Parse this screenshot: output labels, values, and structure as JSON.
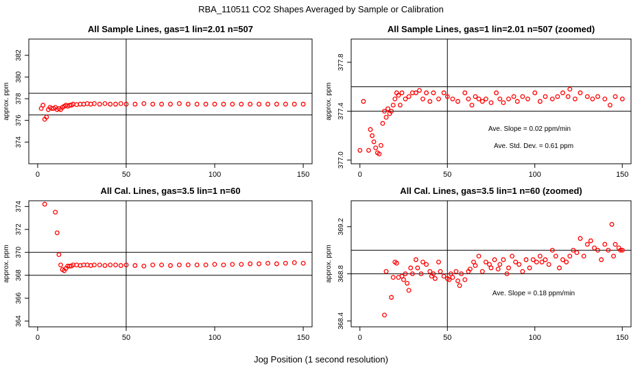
{
  "figure": {
    "title": "RBA_110511  CO2 Shapes Averaged by Sample or Calibration",
    "xlabel": "Jog Position (1 second resolution)"
  },
  "chart_data": [
    {
      "type": "scatter",
      "title": "All Sample Lines, gas=1 lin=2.01 n=507",
      "ylabel": "approx. ppm",
      "xlim": [
        -5,
        155
      ],
      "ylim": [
        372,
        383.5
      ],
      "xticks": [
        0,
        50,
        100,
        150
      ],
      "yticks": [
        374,
        376,
        378,
        380,
        382
      ],
      "hlines": [
        376.5,
        378.5
      ],
      "vline": 50,
      "marker_color": "#ff0000",
      "series": [
        {
          "x": [
            2,
            3,
            4,
            5,
            6,
            7,
            8,
            9,
            10,
            11,
            12,
            13,
            14,
            15,
            16,
            17,
            18,
            19,
            20,
            22,
            24,
            26,
            28,
            30,
            32,
            35,
            38,
            41,
            44,
            47,
            50,
            55,
            60,
            65,
            70,
            75,
            80,
            85,
            90,
            95,
            100,
            105,
            110,
            115,
            120,
            125,
            130,
            135,
            140,
            145,
            150
          ],
          "y": [
            377.1,
            377.4,
            376.1,
            376.3,
            377.0,
            377.2,
            377.1,
            377.1,
            377.2,
            377.0,
            377.1,
            377.0,
            377.2,
            377.3,
            377.4,
            377.3,
            377.4,
            377.4,
            377.5,
            377.45,
            377.5,
            377.5,
            377.55,
            377.5,
            377.55,
            377.5,
            377.55,
            377.5,
            377.5,
            377.55,
            377.5,
            377.5,
            377.55,
            377.5,
            377.5,
            377.5,
            377.55,
            377.5,
            377.5,
            377.5,
            377.5,
            377.5,
            377.5,
            377.5,
            377.5,
            377.5,
            377.5,
            377.5,
            377.5,
            377.5,
            377.5
          ]
        }
      ],
      "annotations": []
    },
    {
      "type": "scatter",
      "title": "All Sample Lines, gas=1 lin=2.01 n=507 (zoomed)",
      "ylabel": "approx. ppm",
      "xlim": [
        -5,
        155
      ],
      "ylim": [
        376.97,
        377.99
      ],
      "xticks": [
        0,
        50,
        100,
        150
      ],
      "yticks": [
        377.0,
        377.4,
        377.8
      ],
      "hlines": [
        377.4,
        377.6
      ],
      "vline": 50,
      "marker_color": "#ff0000",
      "series": [
        {
          "x": [
            0,
            2,
            5,
            6,
            7,
            8,
            9,
            10,
            11,
            12,
            13,
            14,
            15,
            16,
            17,
            18,
            19,
            20,
            21,
            22,
            23,
            24,
            26,
            28,
            30,
            32,
            34,
            36,
            38,
            40,
            42,
            45,
            48,
            50,
            53,
            56,
            60,
            62,
            64,
            66,
            68,
            70,
            72,
            75,
            78,
            80,
            82,
            85,
            88,
            90,
            93,
            96,
            100,
            103,
            106,
            110,
            113,
            116,
            119,
            120,
            123,
            126,
            130,
            133,
            136,
            140,
            143,
            146,
            150
          ],
          "y": [
            377.08,
            377.48,
            377.08,
            377.25,
            377.2,
            377.15,
            377.1,
            377.06,
            377.05,
            377.12,
            377.3,
            377.4,
            377.35,
            377.42,
            377.38,
            377.4,
            377.45,
            377.5,
            377.55,
            377.53,
            377.45,
            377.55,
            377.5,
            377.52,
            377.55,
            377.55,
            377.57,
            377.5,
            377.55,
            377.48,
            377.55,
            377.5,
            377.55,
            377.52,
            377.5,
            377.48,
            377.55,
            377.5,
            377.45,
            377.52,
            377.5,
            377.48,
            377.5,
            377.47,
            377.55,
            377.5,
            377.47,
            377.5,
            377.52,
            377.48,
            377.52,
            377.5,
            377.55,
            377.48,
            377.52,
            377.5,
            377.52,
            377.55,
            377.52,
            377.58,
            377.5,
            377.55,
            377.52,
            377.5,
            377.52,
            377.5,
            377.45,
            377.52,
            377.5
          ]
        }
      ],
      "annotations": [
        "Ave. Slope =  0.02  ppm/min",
        "Ave. Std. Dev. =  0.61  ppm"
      ]
    },
    {
      "type": "scatter",
      "title": "All Cal. Lines, gas=3.5 lin=1 n=60",
      "ylabel": "approx. ppm",
      "xlim": [
        -5,
        155
      ],
      "ylim": [
        363.5,
        374.5
      ],
      "xticks": [
        0,
        50,
        100,
        150
      ],
      "yticks": [
        364,
        366,
        368,
        370,
        372,
        374
      ],
      "hlines": [
        368,
        370
      ],
      "vline": 50,
      "marker_color": "#ff0000",
      "series": [
        {
          "x": [
            4,
            10,
            11,
            12,
            13,
            14,
            15,
            16,
            17,
            18,
            19,
            20,
            22,
            24,
            26,
            28,
            30,
            32,
            35,
            38,
            41,
            44,
            47,
            50,
            55,
            60,
            65,
            70,
            75,
            80,
            85,
            90,
            95,
            100,
            105,
            110,
            115,
            120,
            125,
            130,
            135,
            140,
            145,
            150
          ],
          "y": [
            374.2,
            373.5,
            371.7,
            369.8,
            368.9,
            368.5,
            368.4,
            368.6,
            368.8,
            368.8,
            368.8,
            368.9,
            368.9,
            368.85,
            368.9,
            368.9,
            368.85,
            368.9,
            368.9,
            368.85,
            368.9,
            368.9,
            368.85,
            368.9,
            368.85,
            368.8,
            368.9,
            368.9,
            368.85,
            368.9,
            368.9,
            368.9,
            368.9,
            368.95,
            368.9,
            368.95,
            368.95,
            369.0,
            369.0,
            369.05,
            369.0,
            369.05,
            369.1,
            369.05
          ]
        }
      ],
      "annotations": []
    },
    {
      "type": "scatter",
      "title": "All Cal. Lines, gas=3.5 lin=1 n=60 (zoomed)",
      "ylabel": "approx. ppm",
      "xlim": [
        -5,
        155
      ],
      "ylim": [
        368.35,
        369.42
      ],
      "xticks": [
        0,
        50,
        100,
        150
      ],
      "yticks": [
        368.4,
        368.8,
        369.2
      ],
      "hlines": [
        368.8,
        369.0
      ],
      "vline": 50,
      "marker_color": "#ff0000",
      "series": [
        {
          "x": [
            14,
            15,
            18,
            19,
            20,
            21,
            22,
            24,
            25,
            26,
            27,
            28,
            29,
            30,
            32,
            33,
            35,
            36,
            38,
            40,
            41,
            42,
            43,
            45,
            46,
            48,
            50,
            51,
            52,
            53,
            55,
            56,
            57,
            58,
            60,
            62,
            63,
            65,
            66,
            68,
            70,
            72,
            74,
            75,
            77,
            79,
            80,
            82,
            84,
            85,
            87,
            89,
            91,
            93,
            95,
            97,
            99,
            101,
            103,
            104,
            106,
            108,
            110,
            112,
            114,
            116,
            118,
            120,
            122,
            124,
            126,
            128,
            130,
            132,
            134,
            136,
            138,
            140,
            142,
            144,
            145,
            146,
            148,
            149,
            150
          ],
          "y": [
            368.45,
            368.82,
            368.6,
            368.77,
            368.9,
            368.89,
            368.77,
            368.78,
            368.75,
            368.8,
            368.72,
            368.66,
            368.85,
            368.8,
            368.92,
            368.85,
            368.8,
            368.9,
            368.88,
            368.82,
            368.78,
            368.8,
            368.76,
            368.9,
            368.82,
            368.78,
            368.76,
            368.75,
            368.8,
            368.77,
            368.82,
            368.74,
            368.7,
            368.8,
            368.75,
            368.82,
            368.84,
            368.9,
            368.87,
            368.95,
            368.82,
            368.9,
            368.88,
            368.85,
            368.92,
            368.84,
            368.88,
            368.92,
            368.8,
            368.85,
            368.95,
            368.9,
            368.88,
            368.82,
            368.92,
            368.85,
            368.92,
            368.9,
            368.95,
            368.9,
            368.92,
            368.88,
            369.0,
            368.95,
            368.85,
            368.92,
            368.9,
            368.95,
            369.0,
            368.98,
            369.1,
            368.95,
            369.05,
            369.08,
            369.02,
            369.0,
            368.92,
            369.05,
            369.0,
            369.22,
            368.95,
            369.05,
            369.02,
            369.0,
            369.0
          ]
        }
      ],
      "annotations": [
        "Ave. Slope =  0.18  ppm/min"
      ]
    }
  ]
}
